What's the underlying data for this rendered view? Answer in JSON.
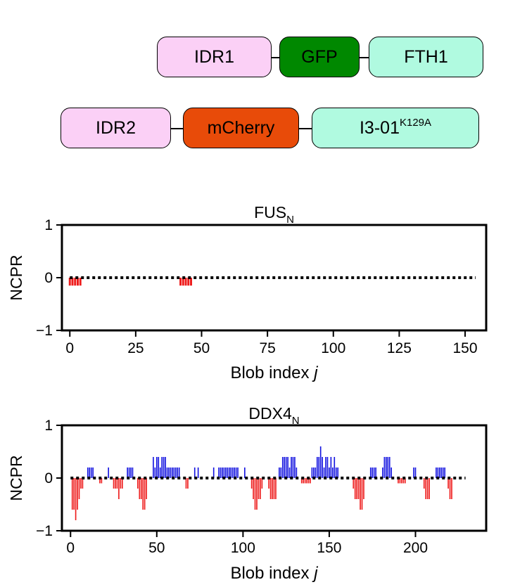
{
  "constructs": {
    "row1": [
      "IDR1",
      "GFP",
      "FTH1"
    ],
    "row2": [
      "IDR2",
      "mCherry",
      "I3-01"
    ],
    "row2_superscript": "K129A"
  },
  "colors": {
    "idr": "#fbd0f6",
    "gfp": "#008800",
    "scaffold": "#b0fae0",
    "mcherry": "#e84b09",
    "positive": "#1515e0",
    "negative": "#ee1c1c"
  },
  "chart_data": [
    {
      "type": "bar",
      "title": "FUS",
      "title_subscript": "N",
      "xlabel": "Blob index",
      "xlabel_italic": "j",
      "ylabel": "NCPR",
      "xlim": [
        -3,
        158
      ],
      "ylim": [
        -1,
        1
      ],
      "xticks": [
        0,
        25,
        50,
        75,
        100,
        125,
        150
      ],
      "yticks": [
        1,
        0,
        -1
      ],
      "ytick_labels": [
        "1",
        "0",
        "−1"
      ],
      "n_blobs": 155,
      "values": [
        -0.15,
        -0.15,
        -0.15,
        -0.15,
        -0.15,
        0,
        0,
        0,
        0,
        0,
        0,
        0,
        0,
        0,
        0,
        0,
        0,
        0,
        0,
        0,
        0,
        0,
        0,
        0,
        0,
        0,
        0,
        0,
        0,
        0,
        0,
        0,
        0,
        0,
        0,
        0,
        0,
        0,
        0,
        0,
        0,
        0,
        -0.15,
        -0.15,
        -0.15,
        -0.15,
        -0.15,
        0,
        0,
        0,
        0,
        0,
        0,
        0,
        0,
        0,
        0,
        0,
        0,
        0,
        0,
        0,
        0,
        0,
        0,
        0,
        0,
        0,
        0,
        0,
        0,
        0,
        0,
        0,
        0,
        0,
        0,
        0,
        0,
        0,
        0,
        0,
        0,
        0,
        0,
        0,
        0,
        0,
        0,
        0,
        0,
        0,
        0,
        0,
        0,
        0,
        0,
        0,
        0,
        0,
        0,
        0,
        0,
        0,
        0,
        0,
        0,
        0,
        0,
        0,
        0,
        0,
        0,
        0,
        0,
        0,
        0,
        0,
        0,
        0,
        0,
        0,
        0,
        0,
        0,
        0,
        0,
        0,
        0,
        0,
        0,
        0,
        0,
        0,
        0,
        0,
        0,
        0,
        0,
        0,
        0,
        0,
        0,
        0,
        0,
        0,
        0,
        0,
        0,
        0,
        0
      ]
    },
    {
      "type": "bar",
      "title": "DDX4",
      "title_subscript": "N",
      "xlabel": "Blob index",
      "xlabel_italic": "j",
      "ylabel": "NCPR",
      "xlim": [
        -5,
        241
      ],
      "ylim": [
        -1,
        1
      ],
      "xticks": [
        0,
        50,
        100,
        150,
        200
      ],
      "yticks": [
        1,
        0,
        -1
      ],
      "ytick_labels": [
        "1",
        "0",
        "−1"
      ],
      "n_blobs": 230,
      "values": [
        0,
        -0.6,
        -0.6,
        -0.8,
        -0.6,
        -0.4,
        -0.2,
        -0.2,
        0,
        0,
        0.2,
        0.2,
        0.2,
        0.2,
        0,
        0,
        0,
        -0.1,
        -0.1,
        0,
        0,
        0,
        0.2,
        0,
        0,
        -0.2,
        -0.2,
        -0.2,
        -0.4,
        -0.2,
        -0.2,
        0,
        0,
        0.2,
        0.2,
        0.2,
        0.2,
        0,
        0,
        -0.2,
        -0.4,
        -0.4,
        -0.6,
        -0.6,
        -0.4,
        0,
        0,
        0,
        0.4,
        0.2,
        0.4,
        0.4,
        0.2,
        0.4,
        0.4,
        0.4,
        0.2,
        0.2,
        0.2,
        0.2,
        0.2,
        0.2,
        0.2,
        0.2,
        0,
        0,
        0,
        -0.2,
        -0.2,
        0,
        0,
        0,
        0.2,
        0,
        0.2,
        0,
        0,
        0,
        0,
        0,
        0,
        0,
        0,
        0.2,
        0,
        0,
        0.2,
        0.2,
        0.2,
        0.2,
        0.2,
        0.2,
        0.2,
        0.2,
        0.2,
        0.2,
        0.2,
        0.2,
        0,
        0,
        0,
        0.2,
        0,
        0,
        0,
        -0.2,
        -0.4,
        -0.6,
        -0.6,
        -0.4,
        -0.4,
        -0.2,
        0,
        0,
        0,
        -0.2,
        -0.4,
        -0.4,
        -0.4,
        -0.4,
        0,
        0.2,
        0.2,
        0.4,
        0.4,
        0.4,
        0.4,
        0.2,
        0.4,
        0.4,
        0.4,
        0.2,
        0,
        0,
        -0.1,
        -0.1,
        -0.1,
        -0.1,
        -0.1,
        -0.1,
        0.2,
        0.2,
        0.2,
        0.4,
        0.4,
        0.6,
        0.4,
        0.2,
        0.4,
        0.4,
        0.2,
        0.4,
        0.2,
        0.4,
        0.2,
        0.2,
        0,
        0,
        0,
        0,
        0,
        0,
        0,
        0,
        -0.2,
        -0.4,
        -0.4,
        -0.4,
        -0.6,
        -0.6,
        -0.4,
        0,
        0,
        0,
        0.2,
        0.2,
        0.2,
        0.2,
        0,
        0,
        0,
        0.2,
        0.4,
        0.4,
        0.4,
        0.4,
        0.2,
        0,
        0,
        0,
        -0.1,
        -0.1,
        -0.1,
        -0.1,
        -0.1,
        0,
        0,
        0,
        0,
        0.2,
        0.2,
        0,
        0,
        0,
        0,
        -0.2,
        -0.4,
        -0.4,
        -0.4,
        0,
        0,
        0,
        0.2,
        0.2,
        0.2,
        0.2,
        0.2,
        0.2,
        0,
        -0.2,
        -0.4,
        -0.4,
        0,
        0
      ]
    }
  ]
}
